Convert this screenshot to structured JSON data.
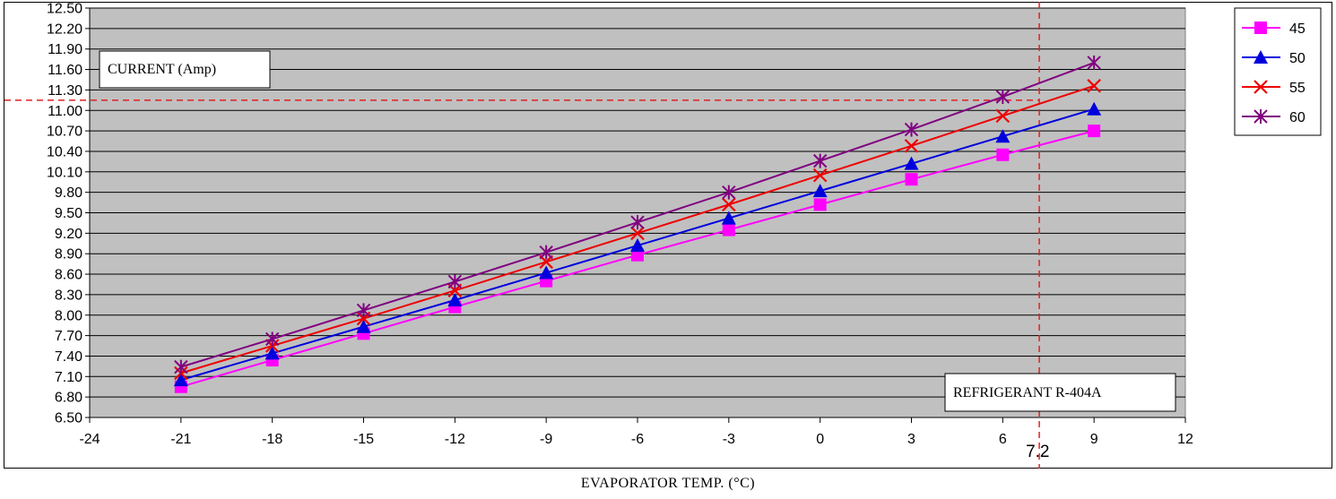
{
  "chart_data": {
    "type": "line",
    "title": "",
    "xlabel": "EVAPORATOR TEMP. (°C)",
    "ylabel": "CURRENT (Amp)",
    "annotation": "REFRIGERANT R-404A",
    "xlim": [
      -24,
      12
    ],
    "ylim": [
      6.5,
      12.5
    ],
    "x_ticks": [
      -24,
      -21,
      -18,
      -15,
      -12,
      -9,
      -6,
      -3,
      0,
      3,
      6,
      9,
      12
    ],
    "y_ticks": [
      "6.50",
      "6.80",
      "7.10",
      "7.40",
      "7.70",
      "8.00",
      "8.30",
      "8.60",
      "8.90",
      "9.20",
      "9.50",
      "9.80",
      "10.10",
      "10.40",
      "10.70",
      "11.00",
      "11.30",
      "11.60",
      "11.90",
      "12.20",
      "12.50"
    ],
    "grid": "horizontal",
    "legend_position": "top-right",
    "reference": {
      "x": 7.2,
      "y": 11.15,
      "x_label": "7.2",
      "color": "#e02020"
    },
    "x": [
      -21,
      -18,
      -15,
      -12,
      -9,
      -6,
      -3,
      0,
      3,
      6,
      9
    ],
    "series": [
      {
        "name": "45",
        "color": "#ff00ff",
        "marker": "square",
        "values": [
          6.95,
          7.34,
          7.73,
          8.12,
          8.5,
          8.88,
          9.25,
          9.62,
          9.99,
          10.35,
          10.7
        ]
      },
      {
        "name": "50",
        "color": "#0000dd",
        "marker": "triangle",
        "values": [
          7.05,
          7.44,
          7.83,
          8.22,
          8.62,
          9.02,
          9.42,
          9.82,
          10.22,
          10.62,
          11.02
        ]
      },
      {
        "name": "55",
        "color": "#ee0000",
        "marker": "x",
        "values": [
          7.15,
          7.55,
          7.95,
          8.36,
          8.78,
          9.2,
          9.62,
          10.05,
          10.48,
          10.92,
          11.36
        ]
      },
      {
        "name": "60",
        "color": "#800080",
        "marker": "asterisk",
        "values": [
          7.24,
          7.65,
          8.07,
          8.49,
          8.92,
          9.36,
          9.8,
          10.26,
          10.72,
          11.2,
          11.7
        ]
      }
    ],
    "colors": {
      "plot_bg": "#c0c0c0",
      "grid": "#000000"
    }
  }
}
